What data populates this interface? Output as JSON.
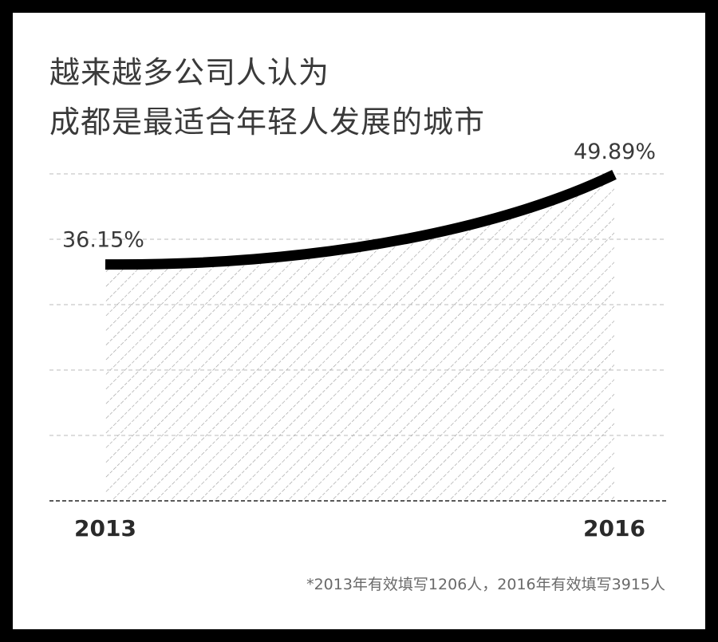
{
  "chart_data": {
    "type": "area",
    "title_lines": [
      "越来越多公司人认为",
      "成都是最适合年轻人发展的城市"
    ],
    "categories": [
      "2013",
      "2016"
    ],
    "series": [
      {
        "values": [
          36.15,
          49.89
        ],
        "labels": [
          "36.15%",
          "49.89%"
        ]
      }
    ],
    "ylim": [
      0,
      50
    ],
    "grid": true,
    "fill_pattern": "diagonal-hatch",
    "colors": {
      "line": "#000000",
      "hatch": "#9a9a9a",
      "grid": "#bbbbbb",
      "text": "#3a3a3a",
      "background": "#000000",
      "panel": "#ffffff"
    },
    "footnote": "*2013年有效填写1206人，2016年有效填写3915人"
  }
}
